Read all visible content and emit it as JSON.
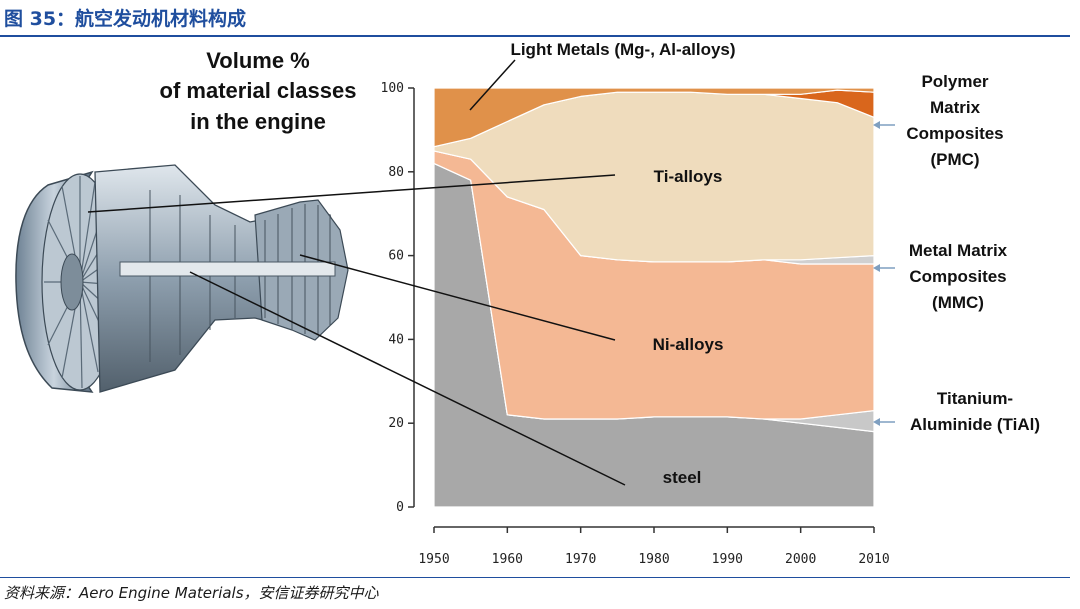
{
  "figure": {
    "title": "图 35：航空发动机材料构成",
    "source": "资料来源：Aero Engine Materials，安信证券研究中心"
  },
  "chart_data": {
    "type": "area",
    "title": "Volume % of material classes in the engine",
    "title_lines": [
      "Volume %",
      "of material classes",
      "in the engine"
    ],
    "x": [
      1950,
      1955,
      1960,
      1965,
      1970,
      1975,
      1980,
      1985,
      1990,
      1995,
      2000,
      2005,
      2010
    ],
    "xticks": [
      "1950",
      "1960",
      "1970",
      "1980",
      "1990",
      "2000",
      "2010"
    ],
    "yticks": [
      "0",
      "20",
      "40",
      "60",
      "80",
      "100"
    ],
    "xlim": [
      1950,
      2010
    ],
    "ylim": [
      0,
      100
    ],
    "series": [
      {
        "name": "steel",
        "color": "#a8a8a8",
        "values": [
          82,
          78,
          22,
          21,
          21,
          21,
          21.5,
          21.5,
          21.5,
          21,
          20,
          19,
          18
        ]
      },
      {
        "name": "Titanium-Aluminide (TiAl)",
        "color": "#c8c8c8",
        "values": [
          0,
          0,
          0,
          0,
          0,
          0,
          0,
          0,
          0,
          0,
          1,
          3,
          5
        ]
      },
      {
        "name": "Ni-alloys",
        "color": "#f4b894",
        "values": [
          3,
          5,
          52,
          50,
          39,
          38,
          37,
          37,
          37,
          38,
          37,
          36,
          35
        ]
      },
      {
        "name": "Metal Matrix Composites (MMC)",
        "color": "#d0d0d0",
        "values": [
          0,
          0,
          0,
          0,
          0,
          0,
          0,
          0,
          0,
          0,
          1,
          1.5,
          2
        ]
      },
      {
        "name": "Ti-alloys",
        "color": "#efdcbd",
        "values": [
          1,
          5,
          18,
          25,
          38,
          40,
          40.5,
          40.5,
          40,
          39.5,
          38.5,
          37,
          33
        ]
      },
      {
        "name": "Polymer Matrix Composites (PMC)",
        "color": "#d9661c",
        "values": [
          0,
          0,
          0,
          0,
          0,
          0,
          0,
          0,
          0,
          0,
          1,
          3,
          6
        ]
      },
      {
        "name": "Light Metals (Mg-, Al-alloys)",
        "color": "#e0914a",
        "values": [
          14,
          12,
          8,
          4,
          2,
          1,
          1,
          1,
          1.5,
          1.5,
          1.5,
          0.5,
          1
        ]
      }
    ],
    "labels": {
      "light_metals": "Light Metals (Mg-, Al-alloys)",
      "ti_alloys": "Ti-alloys",
      "ni_alloys": "Ni-alloys",
      "steel": "steel",
      "pmc": [
        "Polymer",
        "Matrix",
        "Composites",
        "(PMC)"
      ],
      "mmc": [
        "Metal Matrix",
        "Composites",
        "(MMC)"
      ],
      "tial": [
        "Titanium-",
        "Aluminide (TiAl)"
      ]
    }
  }
}
